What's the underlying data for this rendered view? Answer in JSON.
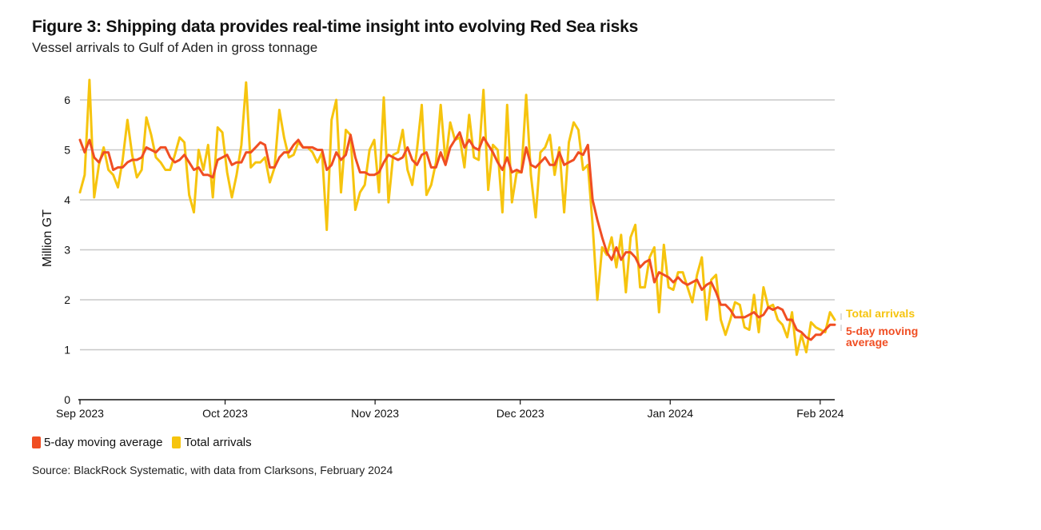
{
  "title": "Figure 3: Shipping data provides real-time insight into evolving Red Sea risks",
  "subtitle": "Vessel arrivals to Gulf of Aden in gross tonnage",
  "source": "Source: BlackRock Systematic, with data from Clarksons, February 2024",
  "colors": {
    "avg": "#f04e23",
    "total": "#f6c40e",
    "grid": "#c8c8c8",
    "axis": "#111111"
  },
  "legend": [
    {
      "label": "5-day moving average",
      "color": "#f04e23"
    },
    {
      "label": "Total arrivals",
      "color": "#f6c40e"
    }
  ],
  "chart_data": {
    "type": "line",
    "ylabel": "Million GT",
    "ylim": [
      0,
      6
    ],
    "yticks": [
      "0",
      "1",
      "2",
      "3",
      "4",
      "5",
      "6"
    ],
    "x_start": "2023-09-01",
    "x_end": "2024-02-04",
    "xticks": [
      {
        "label": "Sep 2023",
        "date": "2023-09-01"
      },
      {
        "label": "Oct 2023",
        "date": "2023-10-01"
      },
      {
        "label": "Nov 2023",
        "date": "2023-11-01"
      },
      {
        "label": "Dec 2023",
        "date": "2023-12-01"
      },
      {
        "label": "Jan 2024",
        "date": "2024-01-01"
      },
      {
        "label": "Feb 2024",
        "date": "2024-02-01"
      }
    ],
    "grid": true,
    "legend_position": "bottom-left",
    "end_labels": [
      {
        "text": "Total arrivals",
        "series": "total"
      },
      {
        "text": "5-day moving average",
        "series": "avg"
      }
    ],
    "series": [
      {
        "key": "total",
        "name": "Total arrivals",
        "color": "#f6c40e",
        "values": [
          4.15,
          4.5,
          6.4,
          4.05,
          4.7,
          5.05,
          4.6,
          4.5,
          4.25,
          4.8,
          5.6,
          4.9,
          4.45,
          4.6,
          5.65,
          5.3,
          4.85,
          4.75,
          4.6,
          4.6,
          4.9,
          5.25,
          5.15,
          4.1,
          3.75,
          5.0,
          4.6,
          5.1,
          4.05,
          5.45,
          5.35,
          4.55,
          4.05,
          4.5,
          5.1,
          6.35,
          4.65,
          4.75,
          4.75,
          4.85,
          4.35,
          4.65,
          5.8,
          5.25,
          4.85,
          4.9,
          5.15,
          5.05,
          5.05,
          4.95,
          4.75,
          4.95,
          3.4,
          5.6,
          6.0,
          4.15,
          5.4,
          5.3,
          3.8,
          4.15,
          4.3,
          5.0,
          5.2,
          4.15,
          6.05,
          3.95,
          4.9,
          4.95,
          5.4,
          4.6,
          4.3,
          5.0,
          5.9,
          4.1,
          4.3,
          4.75,
          5.9,
          4.75,
          5.55,
          5.2,
          5.25,
          4.65,
          5.7,
          4.85,
          4.8,
          6.2,
          4.2,
          5.1,
          5.0,
          3.75,
          5.9,
          3.95,
          4.55,
          4.55,
          6.1,
          4.5,
          3.65,
          4.95,
          5.05,
          5.3,
          4.5,
          5.05,
          3.75,
          5.15,
          5.55,
          5.4,
          4.6,
          4.7,
          3.5,
          2.0,
          3.05,
          2.9,
          3.25,
          2.65,
          3.3,
          2.15,
          3.25,
          3.5,
          2.25,
          2.25,
          2.85,
          3.05,
          1.75,
          3.1,
          2.25,
          2.2,
          2.55,
          2.55,
          2.25,
          1.95,
          2.5,
          2.85,
          1.6,
          2.4,
          2.5,
          1.6,
          1.3,
          1.6,
          1.95,
          1.9,
          1.45,
          1.4,
          2.1,
          1.35,
          2.25,
          1.85,
          1.9,
          1.6,
          1.5,
          1.25,
          1.75,
          0.9,
          1.3,
          0.95,
          1.55,
          1.45,
          1.4,
          1.35,
          1.75,
          1.6
        ]
      },
      {
        "key": "avg",
        "name": "5-day moving average",
        "color": "#f04e23",
        "values": [
          5.2,
          4.95,
          5.2,
          4.85,
          4.75,
          4.95,
          4.95,
          4.6,
          4.65,
          4.65,
          4.75,
          4.8,
          4.8,
          4.85,
          5.05,
          5.0,
          4.95,
          5.05,
          5.05,
          4.85,
          4.75,
          4.8,
          4.9,
          4.75,
          4.6,
          4.65,
          4.5,
          4.5,
          4.45,
          4.8,
          4.85,
          4.9,
          4.7,
          4.75,
          4.75,
          4.95,
          4.95,
          5.05,
          5.15,
          5.1,
          4.65,
          4.65,
          4.85,
          4.95,
          4.95,
          5.1,
          5.2,
          5.05,
          5.05,
          5.05,
          5.0,
          5.0,
          4.6,
          4.7,
          4.95,
          4.8,
          4.9,
          5.3,
          4.85,
          4.55,
          4.55,
          4.5,
          4.5,
          4.55,
          4.75,
          4.9,
          4.85,
          4.8,
          4.85,
          5.05,
          4.8,
          4.7,
          4.9,
          4.95,
          4.65,
          4.65,
          4.95,
          4.7,
          5.05,
          5.2,
          5.35,
          5.05,
          5.2,
          5.05,
          5.0,
          5.25,
          5.1,
          4.95,
          4.75,
          4.6,
          4.85,
          4.55,
          4.6,
          4.55,
          5.05,
          4.7,
          4.65,
          4.75,
          4.85,
          4.7,
          4.7,
          4.95,
          4.7,
          4.75,
          4.8,
          4.95,
          4.9,
          5.1,
          4.0,
          3.6,
          3.25,
          2.95,
          2.8,
          3.05,
          2.8,
          2.95,
          2.95,
          2.85,
          2.65,
          2.75,
          2.8,
          2.35,
          2.55,
          2.5,
          2.45,
          2.35,
          2.45,
          2.35,
          2.3,
          2.35,
          2.4,
          2.2,
          2.3,
          2.35,
          2.15,
          1.9,
          1.9,
          1.8,
          1.65,
          1.65,
          1.65,
          1.7,
          1.75,
          1.65,
          1.7,
          1.85,
          1.8,
          1.85,
          1.8,
          1.6,
          1.6,
          1.4,
          1.35,
          1.25,
          1.2,
          1.3,
          1.3,
          1.4,
          1.5,
          1.5
        ]
      }
    ]
  }
}
